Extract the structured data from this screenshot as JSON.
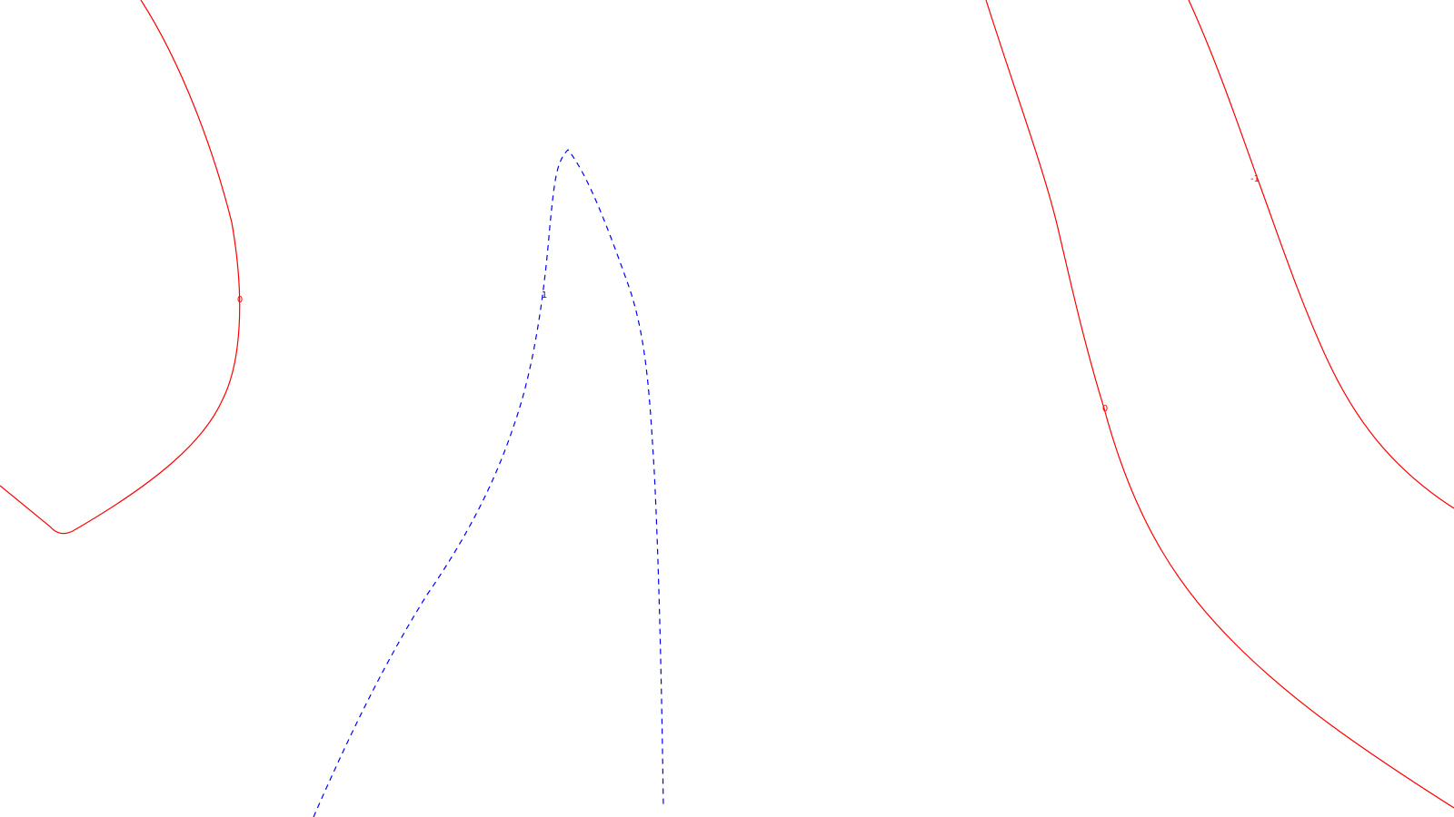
{
  "chart_data": {
    "type": "contour",
    "title": "",
    "xlabel": "",
    "ylabel": "",
    "grid": false,
    "legend": "none",
    "colors": {
      "background": "#ffffff",
      "positive": "#0000ff",
      "zero": "#ff0000",
      "negative": "#ff0000"
    },
    "contours": [
      {
        "level": 0,
        "label": "0",
        "style": "solid",
        "color": "#ff0000"
      },
      {
        "level": 1,
        "label": "1",
        "style": "dashed",
        "color": "#0000ff"
      },
      {
        "level": 0,
        "label": "0",
        "style": "solid",
        "color": "#ff0000"
      },
      {
        "level": -1,
        "label": "-1",
        "style": "solid",
        "color": "#ff0000"
      }
    ]
  }
}
